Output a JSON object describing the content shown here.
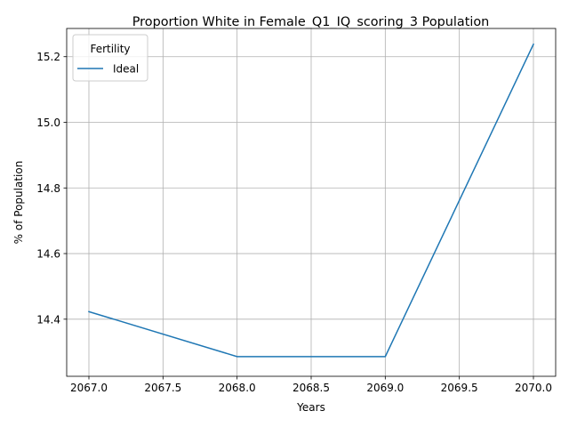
{
  "chart_data": {
    "type": "line",
    "title": "Proportion White in Female_Q1_IQ_scoring_3 Population",
    "xlabel": "Years",
    "ylabel": "% of Population",
    "xlim": [
      2066.85,
      2070.15
    ],
    "ylim": [
      14.226,
      15.286
    ],
    "xticks": [
      2067.0,
      2067.5,
      2068.0,
      2068.5,
      2069.0,
      2069.5,
      2070.0
    ],
    "xtick_labels": [
      "2067.0",
      "2067.5",
      "2068.0",
      "2068.5",
      "2069.0",
      "2069.5",
      "2070.0"
    ],
    "yticks": [
      14.4,
      14.6,
      14.8,
      15.0,
      15.2
    ],
    "ytick_labels": [
      "14.4",
      "14.6",
      "14.8",
      "15.0",
      "15.2"
    ],
    "grid": true,
    "legend": {
      "title": "Fertility",
      "position": "top-left"
    },
    "series": [
      {
        "name": "Ideal",
        "color": "#1f77b4",
        "x": [
          2067,
          2068,
          2069,
          2070
        ],
        "y": [
          14.423,
          14.286,
          14.286,
          15.238
        ]
      }
    ]
  }
}
